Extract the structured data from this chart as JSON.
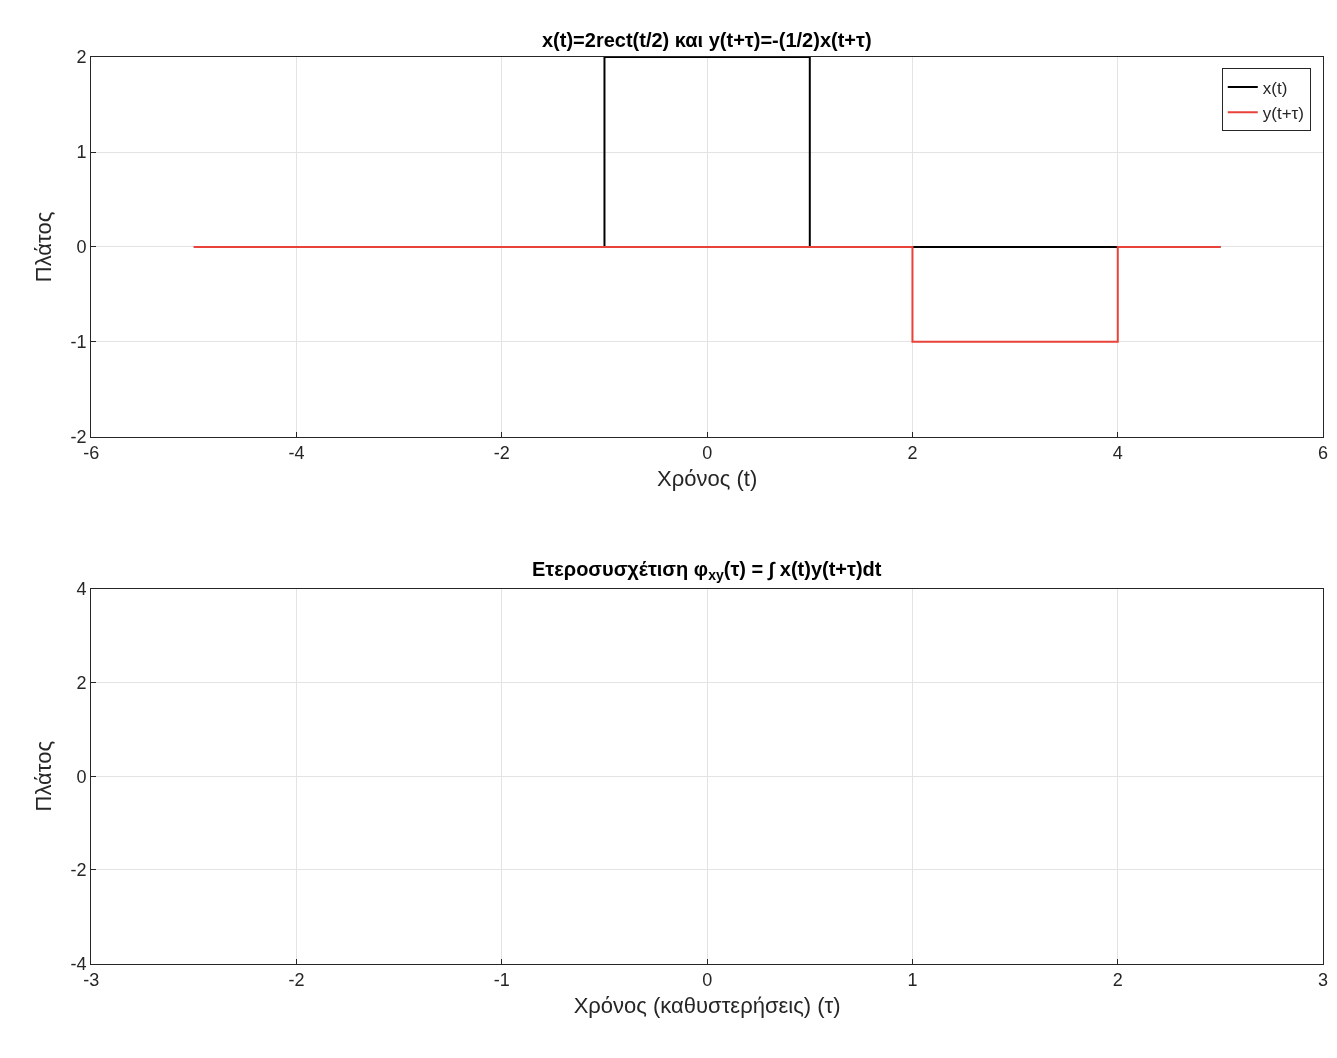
{
  "chart_data": [
    {
      "type": "line",
      "title": "x(t)=2rect(t/2) και y(t+τ)=-(1/2)x(t+τ)",
      "xlabel": "Χρόνος (t)",
      "ylabel": "Πλάτος",
      "series": [
        {
          "name": "x(t)",
          "color": "#000000",
          "x": [
            -5,
            -1,
            -1,
            1,
            1,
            5
          ],
          "values": [
            0,
            0,
            2,
            2,
            0,
            0
          ]
        },
        {
          "name": "y(t+τ)",
          "color": "#e8423a",
          "x": [
            -5,
            2,
            2,
            4,
            4,
            5
          ],
          "values": [
            0,
            0,
            -1,
            -1,
            0,
            0
          ]
        }
      ],
      "xlim": [
        -6,
        6
      ],
      "xticks": [
        -6,
        -4,
        -2,
        0,
        2,
        4,
        6
      ],
      "ylim": [
        -2,
        2
      ],
      "yticks": [
        -2,
        -1,
        0,
        1,
        2
      ],
      "grid": true,
      "legend": "top right",
      "line_style": "solid"
    },
    {
      "type": "line",
      "title": "Ετεροσυσχέτιση φ$_{xy}$(τ) = ∫ x(t)y(t+τ)dt",
      "xlabel": "Χρόνος (καθυστερήσεις) (τ)",
      "ylabel": "Πλάτος",
      "xlim": [
        -3,
        3
      ],
      "xticks": [
        -3,
        -2,
        -1,
        0,
        1,
        2,
        3
      ],
      "ylim": [
        -4,
        4
      ],
      "yticks": [
        -4,
        -2,
        0,
        2,
        4
      ],
      "grid": true
    }
  ]
}
